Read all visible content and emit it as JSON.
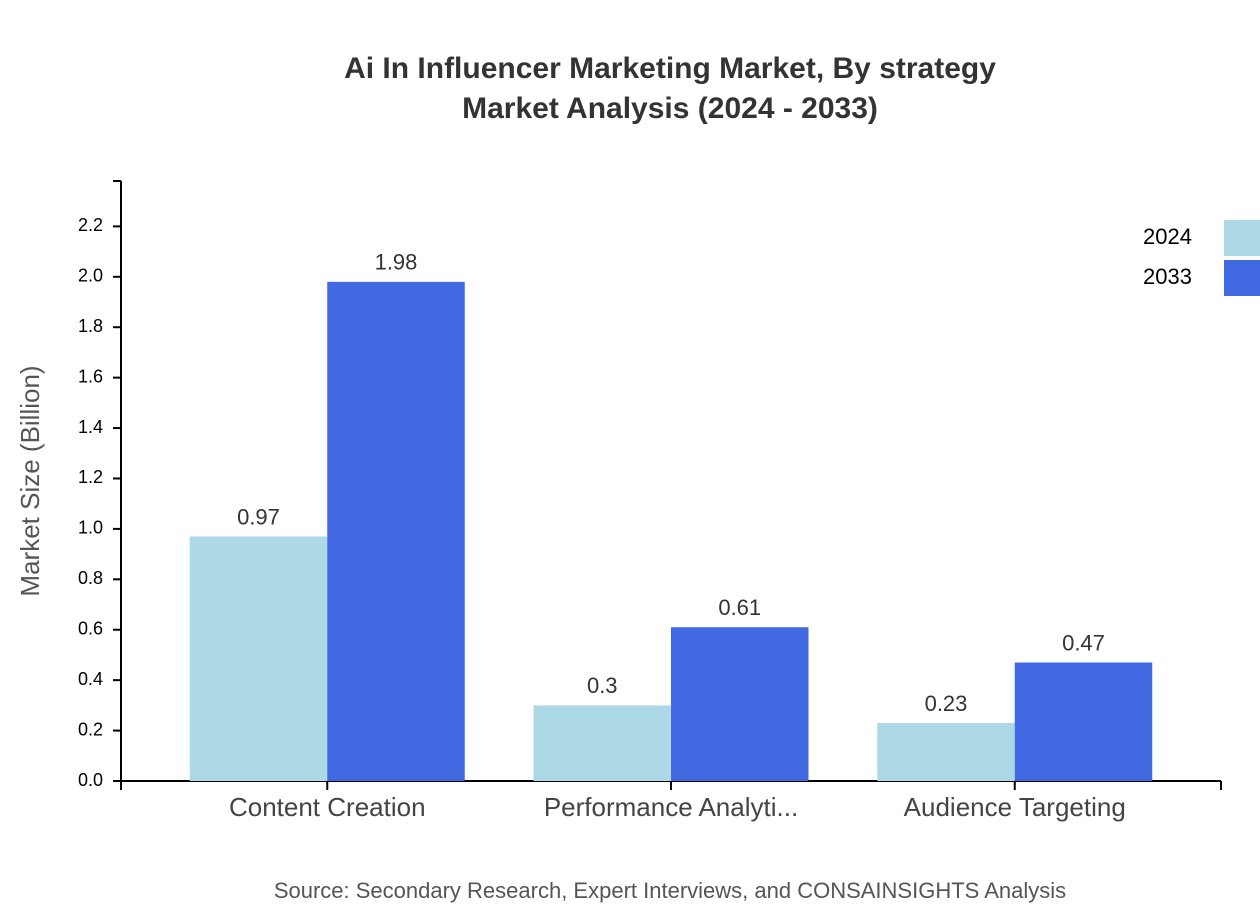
{
  "chart_data": {
    "type": "grouped-bar",
    "title": [
      "Ai In Influencer Marketing Market, By strategy",
      "Market Analysis (2024 - 2033)"
    ],
    "y_label": "Market Size (Billion)",
    "source": "Source: Secondary Research, Expert Interviews, and CONSAINSIGHTS Analysis",
    "categories": [
      "Content Creation",
      "Performance Analyti...",
      "Audience Targeting"
    ],
    "series": [
      {
        "name": "2024",
        "color": "#add8e6",
        "values": [
          0.97,
          0.3,
          0.23
        ]
      },
      {
        "name": "2033",
        "color": "#4169e1",
        "values": [
          1.98,
          0.61,
          0.47
        ]
      }
    ],
    "ylim": [
      0,
      2.38
    ],
    "yticks": [
      {
        "value": 0,
        "label": "0.0"
      },
      0.2,
      0.4,
      0.6,
      0.8,
      {
        "value": 1,
        "label": "1.0"
      },
      1.2,
      1.4,
      1.6,
      1.8,
      {
        "value": 2,
        "label": "2.0"
      },
      2.2
    ],
    "legend": "top-right"
  }
}
